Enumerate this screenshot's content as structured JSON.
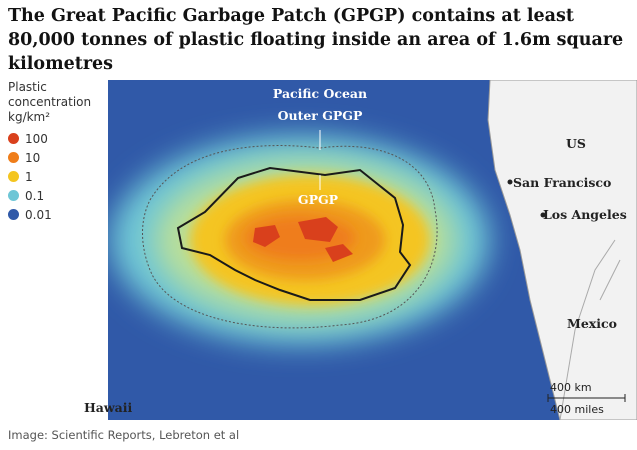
{
  "header": {
    "title": "The Great Pacific Garbage Patch (GPGP) contains at least 80,000 tonnes of plastic floating inside an area of 1.6m square kilometres"
  },
  "legend": {
    "title": "Plastic concentration kg/km²",
    "items": [
      {
        "label": "100",
        "color": "#d9401c"
      },
      {
        "label": "10",
        "color": "#ef7d1a"
      },
      {
        "label": "1",
        "color": "#f4c520"
      },
      {
        "label": "0.1",
        "color": "#6ec6d6"
      },
      {
        "label": "0.01",
        "color": "#3059a8"
      }
    ]
  },
  "map": {
    "labels": {
      "ocean": "Pacific Ocean",
      "outer": "Outer GPGP",
      "inner": "GPGP",
      "us": "US",
      "sf": "San Francisco",
      "la": "Los Angeles",
      "mexico": "Mexico",
      "hawaii": "Hawaii"
    },
    "scale": {
      "km": "400 km",
      "miles": "400 miles"
    }
  },
  "footer": {
    "source": "Image: Scientific Reports, Lebreton et al"
  }
}
